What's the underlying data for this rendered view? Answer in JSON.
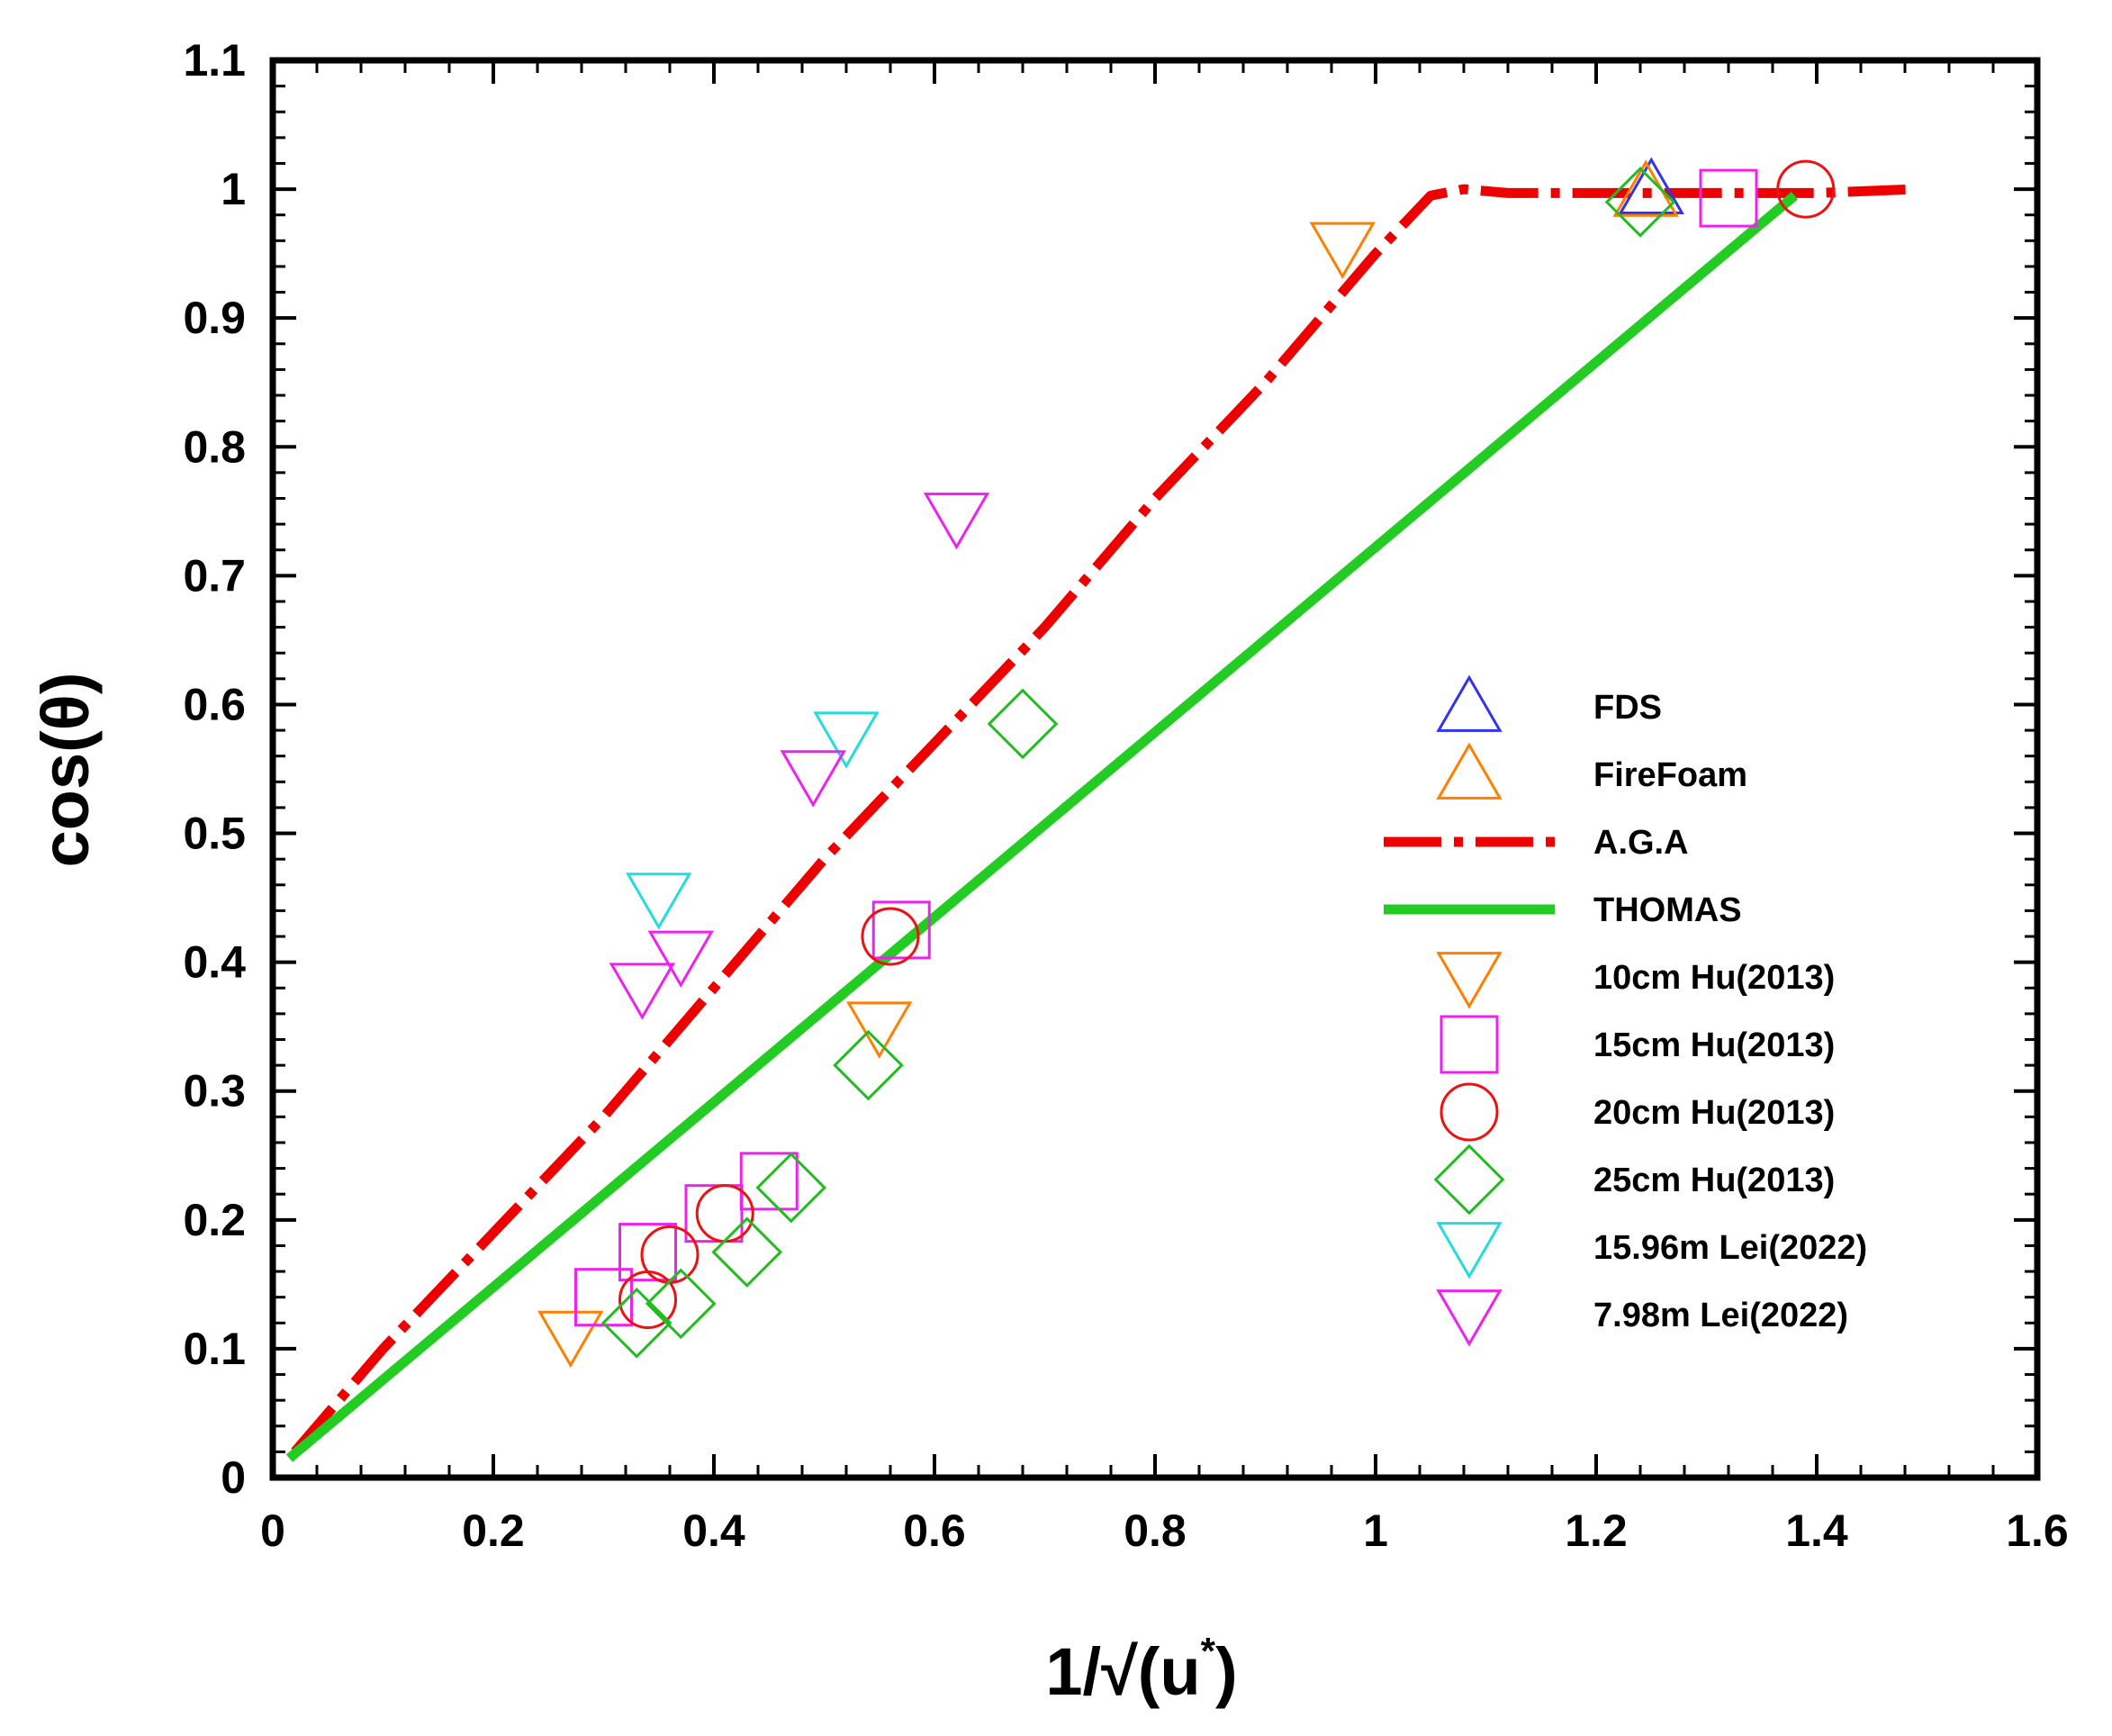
{
  "chart_data": {
    "type": "scatter",
    "xlabel": "1/√(u*)",
    "xlabel_main": "1/√(u",
    "xlabel_sup": "*",
    "xlabel_close": ")",
    "ylabel": "cos(θ)",
    "xlim": [
      0,
      1.6
    ],
    "ylim": [
      0,
      1.1
    ],
    "x_ticks": [
      0,
      0.2,
      0.4,
      0.6,
      0.8,
      1,
      1.2,
      1.4,
      1.6
    ],
    "x_tick_labels": [
      "0",
      "0.2",
      "0.4",
      "0.6",
      "0.8",
      "1",
      "1.2",
      "1.4",
      "1.6"
    ],
    "y_ticks": [
      0,
      0.1,
      0.2,
      0.3,
      0.4,
      0.5,
      0.6,
      0.7,
      0.8,
      0.9,
      1,
      1.1
    ],
    "y_tick_labels": [
      "0",
      "0.1",
      "0.2",
      "0.3",
      "0.4",
      "0.5",
      "0.6",
      "0.7",
      "0.8",
      "0.9",
      "1",
      "1.1"
    ],
    "grid": false,
    "legend_position": "right",
    "series": [
      {
        "name": "FDS",
        "kind": "marker",
        "marker": "triangle-up",
        "color": "#3333ee",
        "points": [
          [
            1.25,
            1.0
          ]
        ]
      },
      {
        "name": "FireFoam",
        "kind": "marker",
        "marker": "triangle-up",
        "color": "#ff7f00",
        "points": [
          [
            1.245,
            0.998
          ]
        ]
      },
      {
        "name": "A.G.A",
        "kind": "line",
        "style": "dashdot",
        "color": "#ee0000",
        "points": [
          [
            0.02,
            0.02
          ],
          [
            0.1,
            0.1
          ],
          [
            0.2,
            0.19
          ],
          [
            0.3,
            0.28
          ],
          [
            0.4,
            0.38
          ],
          [
            0.5,
            0.48
          ],
          [
            0.6,
            0.57
          ],
          [
            0.7,
            0.66
          ],
          [
            0.8,
            0.76
          ],
          [
            0.9,
            0.85
          ],
          [
            1.0,
            0.95
          ],
          [
            1.05,
            0.995
          ],
          [
            1.08,
            1.0
          ],
          [
            1.12,
            0.997
          ],
          [
            1.2,
            0.997
          ],
          [
            1.3,
            0.997
          ],
          [
            1.4,
            0.997
          ],
          [
            1.49,
            1.0
          ]
        ]
      },
      {
        "name": "THOMAS",
        "kind": "line",
        "style": "solid",
        "color": "#22cc22",
        "points": [
          [
            0.015,
            0.015
          ],
          [
            1.38,
            0.995
          ]
        ]
      },
      {
        "name": "10cm Hu(2013)",
        "kind": "marker",
        "marker": "triangle-down",
        "color": "#ff7f00",
        "points": [
          [
            0.27,
            0.11
          ],
          [
            0.55,
            0.35
          ],
          [
            0.97,
            0.955
          ]
        ]
      },
      {
        "name": "15cm Hu(2013)",
        "kind": "marker",
        "marker": "square",
        "color": "#ee22ee",
        "points": [
          [
            0.3,
            0.14
          ],
          [
            0.34,
            0.175
          ],
          [
            0.4,
            0.205
          ],
          [
            0.45,
            0.23
          ],
          [
            0.57,
            0.425
          ],
          [
            1.32,
            0.993
          ]
        ]
      },
      {
        "name": "20cm Hu(2013)",
        "kind": "marker",
        "marker": "circle",
        "color": "#ee1111",
        "points": [
          [
            0.34,
            0.138
          ],
          [
            0.36,
            0.173
          ],
          [
            0.41,
            0.205
          ],
          [
            0.56,
            0.42
          ],
          [
            1.39,
            1.0
          ]
        ]
      },
      {
        "name": "25cm Hu(2013)",
        "kind": "marker",
        "marker": "diamond",
        "color": "#22bb22",
        "points": [
          [
            0.33,
            0.12
          ],
          [
            0.37,
            0.135
          ],
          [
            0.43,
            0.175
          ],
          [
            0.47,
            0.225
          ],
          [
            0.54,
            0.32
          ],
          [
            0.68,
            0.585
          ],
          [
            1.24,
            0.99
          ]
        ]
      },
      {
        "name": "15.96m Lei(2022)",
        "kind": "marker",
        "marker": "triangle-down",
        "color": "#22dddd",
        "points": [
          [
            0.35,
            0.45
          ],
          [
            0.52,
            0.575
          ]
        ]
      },
      {
        "name": "7.98m Lei(2022)",
        "kind": "marker",
        "marker": "triangle-down",
        "color": "#ee22ee",
        "points": [
          [
            0.335,
            0.38
          ],
          [
            0.37,
            0.405
          ],
          [
            0.49,
            0.545
          ],
          [
            0.62,
            0.745
          ]
        ]
      }
    ]
  }
}
